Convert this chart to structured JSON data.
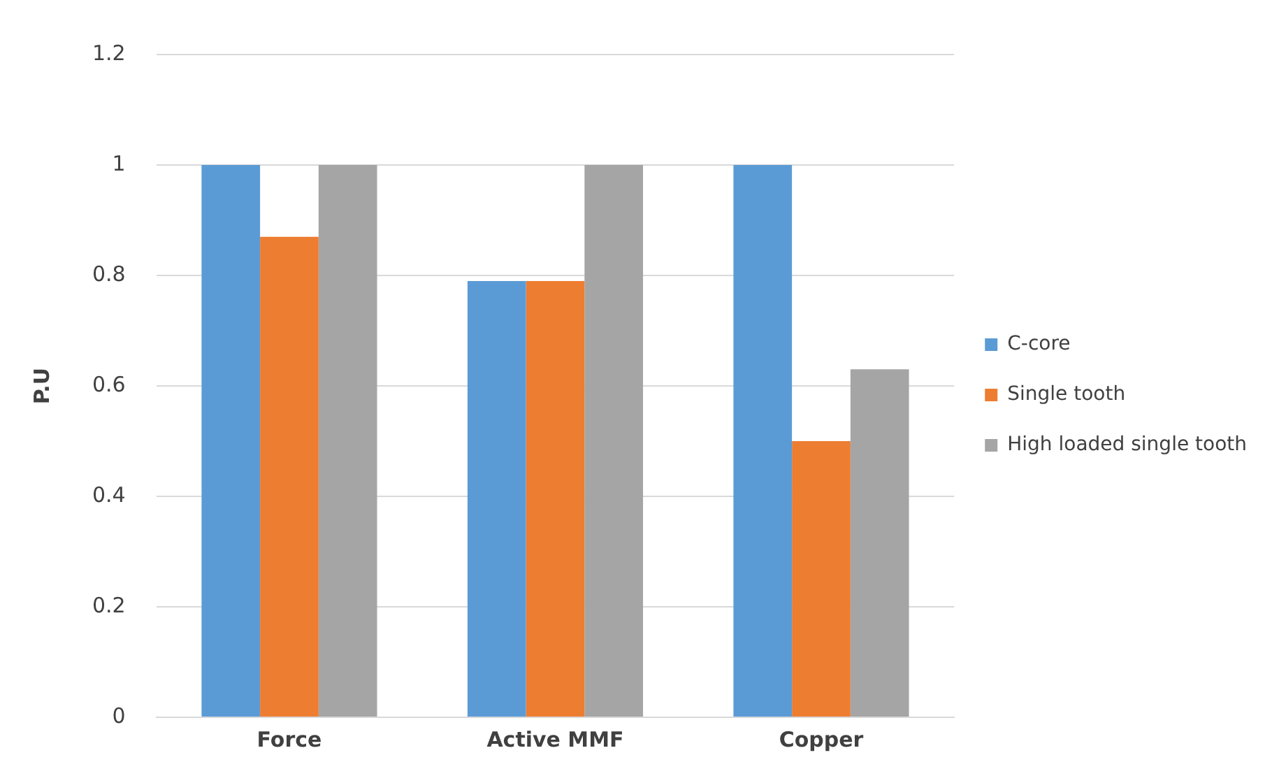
{
  "chart_data": {
    "type": "bar",
    "ylabel": "P.U",
    "categories": [
      "Force",
      "Active MMF",
      "Copper"
    ],
    "series": [
      {
        "name": "C-core",
        "color": "#5b9bd5",
        "values": [
          1,
          0.79,
          1
        ]
      },
      {
        "name": "Single tooth",
        "color": "#ed7d31",
        "values": [
          0.87,
          0.79,
          0.5
        ]
      },
      {
        "name": "High loaded single tooth",
        "color": "#a5a5a5",
        "values": [
          1,
          1,
          0.63
        ]
      }
    ],
    "ylim": [
      0,
      1.2
    ],
    "yticks": [
      0,
      0.2,
      0.4,
      0.6,
      0.8,
      1,
      1.2
    ],
    "grid": "y",
    "legend": "right"
  }
}
